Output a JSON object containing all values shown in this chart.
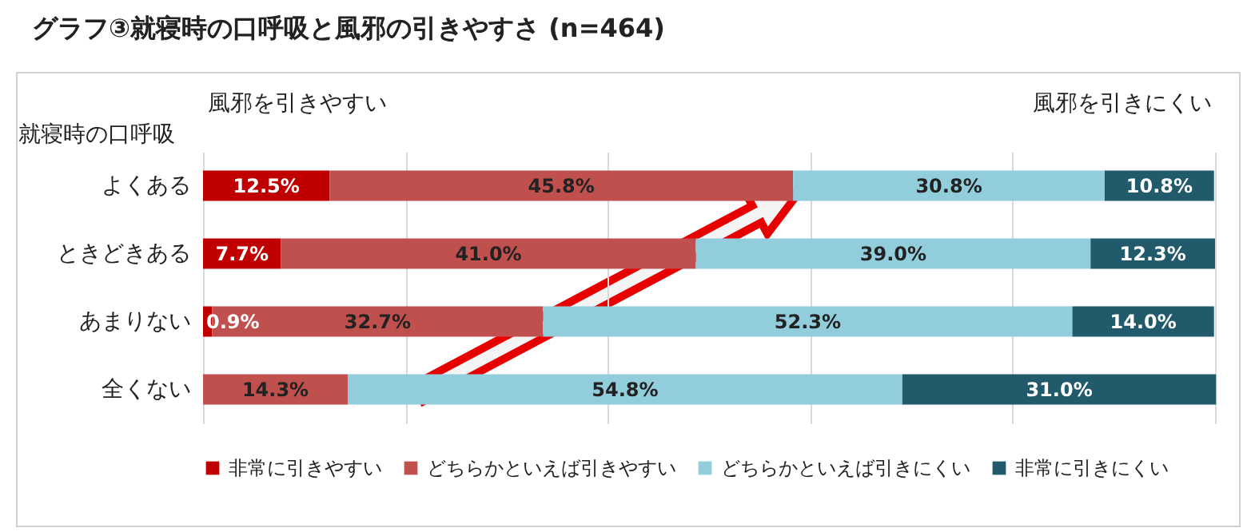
{
  "chart_data": {
    "type": "bar",
    "orientation": "horizontal",
    "stacked": true,
    "title": "グラフ③就寝時の口呼吸と風邪の引きやすさ (n=464)",
    "ylabel": "就寝時の口呼吸",
    "annotations": [
      "風邪を引きやすい",
      "風邪を引きにくい"
    ],
    "categories": [
      "よくある",
      "ときどきある",
      "あまりない",
      "全くない"
    ],
    "series": [
      {
        "name": "非常に引きやすい",
        "color": "#c00000",
        "values": [
          12.5,
          7.7,
          0.9,
          0
        ],
        "value_labels": [
          "12.5%",
          "7.7%",
          "0.9%",
          null
        ]
      },
      {
        "name": "どちらかといえば引きやすい",
        "color": "#c0504d",
        "values": [
          45.8,
          41.0,
          32.7,
          14.3
        ],
        "value_labels": [
          "45.8%",
          "41.0%",
          "32.7%",
          "14.3%"
        ]
      },
      {
        "name": "どちらかといえば引きにくい",
        "color": "#92cddc",
        "values": [
          30.8,
          39.0,
          52.3,
          54.8
        ],
        "value_labels": [
          "30.8%",
          "39.0%",
          "52.3%",
          "54.8%"
        ]
      },
      {
        "name": "非常に引きにくい",
        "color": "#215a6b",
        "values": [
          10.8,
          12.3,
          14.0,
          31.0
        ],
        "value_labels": [
          "10.8%",
          "12.3%",
          "14.0%",
          "31.0%"
        ]
      }
    ],
    "xlim": [
      0,
      100
    ],
    "xticks": [
      {
        "value": 0,
        "label": null
      },
      {
        "value": 20,
        "label": null
      },
      {
        "value": 40,
        "label": null
      },
      {
        "value": 60,
        "label": null
      },
      {
        "value": 80,
        "label": null
      },
      {
        "value": 100,
        "label": null
      }
    ],
    "tick_labels": "y",
    "grid": "x",
    "legend": "bottom"
  }
}
